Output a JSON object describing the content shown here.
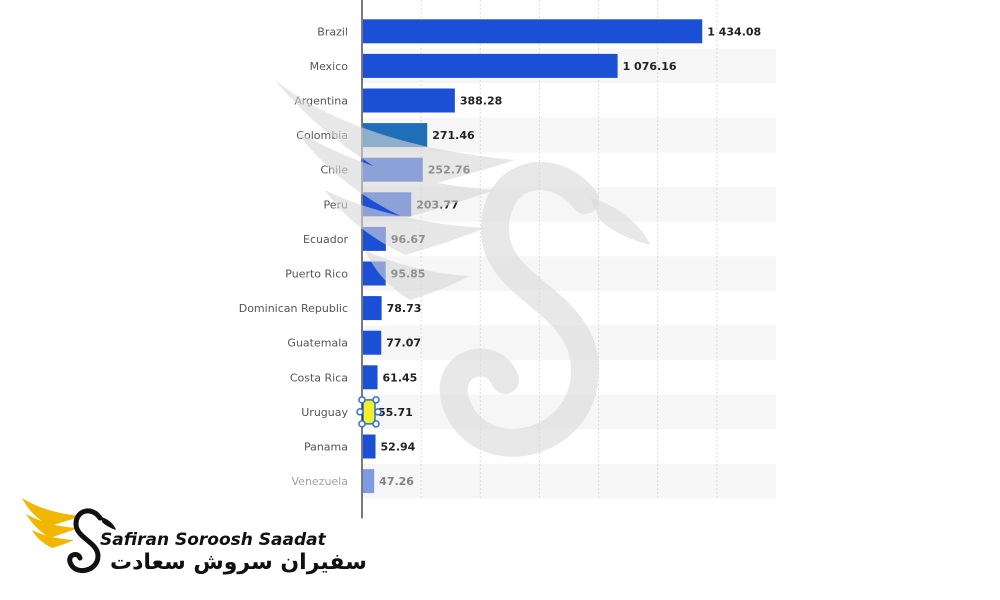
{
  "chart_data": {
    "type": "bar",
    "orientation": "horizontal",
    "categories": [
      "Brazil",
      "Mexico",
      "Argentina",
      "Colombia",
      "Chile",
      "Peru",
      "Ecuador",
      "Puerto Rico",
      "Dominican Republic",
      "Guatemala",
      "Costa Rica",
      "Uruguay",
      "Panama",
      "Venezuela"
    ],
    "values": [
      1434.08,
      1076.16,
      388.28,
      271.46,
      252.76,
      203.77,
      96.67,
      95.85,
      78.73,
      77.07,
      61.45,
      55.71,
      52.94,
      47.26
    ],
    "value_labels": [
      "1 434.08",
      "1 076.16",
      "388.28",
      "271.46",
      "252.76",
      "203.77",
      "96.67",
      "95.85",
      "78.73",
      "77.07",
      "61.45",
      "55.71",
      "52.94",
      "47.26"
    ],
    "title": "",
    "xlabel": "",
    "ylabel": "",
    "xlim": [
      0,
      1750
    ],
    "grid": true,
    "colors": {
      "bar": "#1a4fd6",
      "highlight": "#1f6fb8",
      "selected": "#f2ef2a",
      "handle": "#2a6fd8"
    },
    "selected_category": "Uruguay"
  },
  "branding": {
    "name_en": "Safiran Soroosh Saadat",
    "name_fa": "سفیران سروش سعادت",
    "logo_colors": {
      "wing": "#f2b705",
      "swan": "#111111"
    }
  }
}
